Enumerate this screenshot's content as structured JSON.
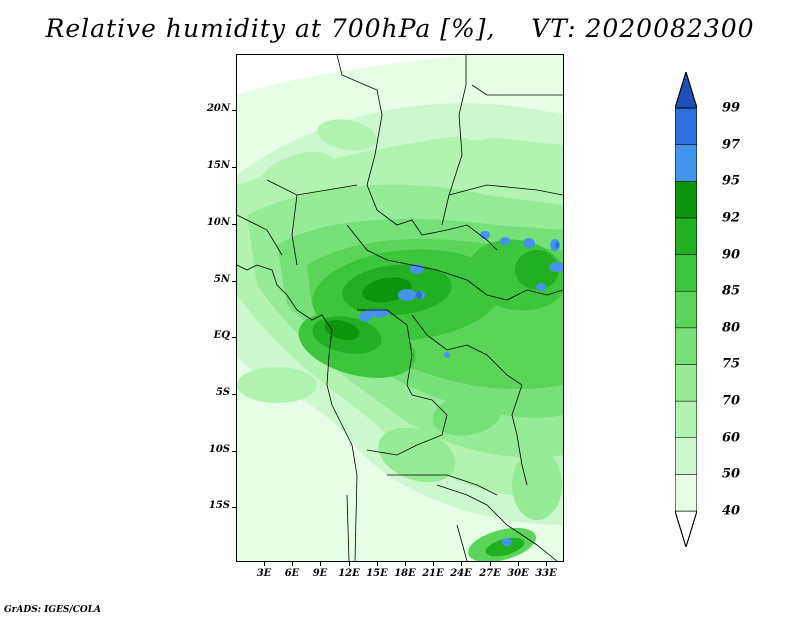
{
  "title": {
    "variable": "Relative humidity at 700hPa [%],",
    "valid_time": "VT: 2020082300"
  },
  "map": {
    "lat_labels": [
      "20N",
      "15N",
      "10N",
      "5N",
      "EQ",
      "5S",
      "10S",
      "15S"
    ],
    "lon_labels": [
      "3E",
      "6E",
      "9E",
      "12E",
      "15E",
      "18E",
      "21E",
      "24E",
      "27E",
      "30E",
      "33E"
    ],
    "field_colors": {
      "lt40": "#ffffff",
      "r40_50": "#e6fde6",
      "r50_60": "#cdf8cd",
      "r60_70": "#b2f3b2",
      "r70_75": "#96eb96",
      "r75_80": "#78e078",
      "r80_85": "#5ad55a",
      "r85_90": "#3dc53d",
      "r90_92": "#22b022",
      "r92_95": "#0e950e",
      "r95_97": "#4494ee",
      "r97_99": "#2a6fdc",
      "gt99": "#1c50b8"
    },
    "coastline_color": "#000000"
  },
  "colorbar": {
    "labels": [
      "40",
      "50",
      "60",
      "70",
      "75",
      "80",
      "85",
      "90",
      "92",
      "95",
      "97",
      "99"
    ],
    "colors": [
      "#ffffff",
      "#e6fde6",
      "#cdf8cd",
      "#b2f3b2",
      "#96eb96",
      "#78e078",
      "#5ad55a",
      "#3dc53d",
      "#22b022",
      "#0e950e",
      "#4494ee",
      "#2a6fdc",
      "#1c50b8"
    ]
  },
  "credit": "GrADS: IGES/COLA"
}
